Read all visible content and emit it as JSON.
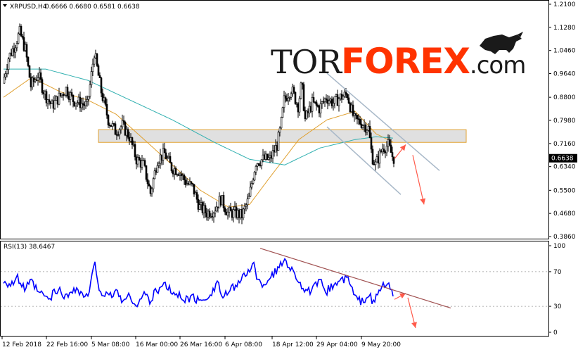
{
  "header": {
    "symbol": "XRPUSD,H4",
    "ohlc": "0.6666 0.6680 0.6581 0.6638"
  },
  "watermark": {
    "part1": "TOR",
    "part2": "FOREX",
    "part3": ".com",
    "color_dark": "#1a1a1a",
    "color_accent": "#ff3300"
  },
  "colors": {
    "bull_candle": "#000000",
    "bear_candle": "#000000",
    "ma_fast": "#e0a030",
    "ma_slow": "#30b0b0",
    "zone": "#d8d8d8",
    "zone_border": "#e0a030",
    "channel": "#a8b8c8",
    "arrow": "#ff5a4a",
    "rsi_line": "#0000ff",
    "rsi_trend": "#a05050"
  },
  "chart_data": [
    {
      "type": "candlestick",
      "title": "XRPUSD,H4",
      "ylim": [
        0.386,
        1.21
      ],
      "y_ticks": [
        "1.2100",
        "1.1280",
        "1.0460",
        "0.9640",
        "0.8800",
        "0.7980",
        "0.7160",
        "0.6340",
        "0.5500",
        "0.4680",
        "0.3860"
      ],
      "last_price": "0.6638",
      "x_ticks": [
        "12 Feb 2018",
        "22 Feb 16:00",
        "5 Mar 08:00",
        "16 Mar 00:00",
        "26 Mar 16:00",
        "6 Apr 08:00",
        "18 Apr 12:00",
        "29 Apr 04:00",
        "9 May 20:00"
      ],
      "keypoints": [
        [
          0,
          0.93
        ],
        [
          8,
          1.02
        ],
        [
          16,
          1.06
        ],
        [
          24,
          1.11
        ],
        [
          32,
          1.05
        ],
        [
          40,
          0.92
        ],
        [
          50,
          0.96
        ],
        [
          60,
          0.89
        ],
        [
          70,
          0.85
        ],
        [
          80,
          0.88
        ],
        [
          90,
          0.91
        ],
        [
          100,
          0.87
        ],
        [
          110,
          0.86
        ],
        [
          120,
          0.85
        ],
        [
          125,
          0.94
        ],
        [
          130,
          1.04
        ],
        [
          140,
          0.9
        ],
        [
          150,
          0.8
        ],
        [
          160,
          0.76
        ],
        [
          170,
          0.78
        ],
        [
          180,
          0.74
        ],
        [
          190,
          0.66
        ],
        [
          200,
          0.64
        ],
        [
          210,
          0.54
        ],
        [
          220,
          0.66
        ],
        [
          230,
          0.68
        ],
        [
          240,
          0.63
        ],
        [
          250,
          0.62
        ],
        [
          260,
          0.58
        ],
        [
          270,
          0.56
        ],
        [
          280,
          0.49
        ],
        [
          290,
          0.47
        ],
        [
          300,
          0.48
        ],
        [
          310,
          0.52
        ],
        [
          320,
          0.47
        ],
        [
          330,
          0.47
        ],
        [
          340,
          0.46
        ],
        [
          350,
          0.52
        ],
        [
          355,
          0.59
        ],
        [
          360,
          0.65
        ],
        [
          370,
          0.66
        ],
        [
          380,
          0.66
        ],
        [
          390,
          0.71
        ],
        [
          395,
          0.77
        ],
        [
          400,
          0.87
        ],
        [
          410,
          0.91
        ],
        [
          420,
          0.85
        ],
        [
          425,
          0.93
        ],
        [
          430,
          0.8
        ],
        [
          440,
          0.86
        ],
        [
          450,
          0.84
        ],
        [
          460,
          0.88
        ],
        [
          470,
          0.86
        ],
        [
          480,
          0.88
        ],
        [
          490,
          0.89
        ],
        [
          495,
          0.84
        ],
        [
          500,
          0.8
        ],
        [
          510,
          0.79
        ],
        [
          520,
          0.77
        ],
        [
          525,
          0.67
        ],
        [
          530,
          0.64
        ],
        [
          540,
          0.7
        ],
        [
          548,
          0.71
        ],
        [
          555,
          0.664
        ]
      ],
      "ma_fast_keypoints": [
        [
          0,
          0.88
        ],
        [
          40,
          0.95
        ],
        [
          80,
          0.9
        ],
        [
          120,
          0.87
        ],
        [
          160,
          0.82
        ],
        [
          200,
          0.73
        ],
        [
          240,
          0.64
        ],
        [
          280,
          0.55
        ],
        [
          320,
          0.49
        ],
        [
          350,
          0.5
        ],
        [
          380,
          0.6
        ],
        [
          420,
          0.73
        ],
        [
          460,
          0.8
        ],
        [
          500,
          0.83
        ],
        [
          530,
          0.75
        ],
        [
          555,
          0.72
        ]
      ],
      "ma_slow_keypoints": [
        [
          0,
          0.98
        ],
        [
          60,
          0.98
        ],
        [
          120,
          0.94
        ],
        [
          180,
          0.87
        ],
        [
          240,
          0.8
        ],
        [
          300,
          0.72
        ],
        [
          350,
          0.66
        ],
        [
          400,
          0.64
        ],
        [
          450,
          0.7
        ],
        [
          500,
          0.73
        ],
        [
          530,
          0.74
        ],
        [
          555,
          0.735
        ]
      ],
      "zone": {
        "x_from": 135,
        "x_to": 658,
        "y_high": 0.765,
        "y_low": 0.72
      },
      "channel_upper": [
        [
          460,
          0.965
        ],
        [
          620,
          0.62
        ]
      ],
      "channel_lower": [
        [
          460,
          0.775
        ],
        [
          565,
          0.535
        ]
      ],
      "arrows": [
        {
          "from": [
            556,
            0.662
          ],
          "to": [
            572,
            0.712
          ]
        },
        {
          "from": [
            582,
            0.675
          ],
          "to": [
            598,
            0.5
          ]
        }
      ]
    },
    {
      "type": "line",
      "title": "RSI(13) 38.6467",
      "ylim": [
        0,
        100
      ],
      "y_ticks": [
        "100",
        "70",
        "30",
        "0"
      ],
      "levels": [
        70,
        30
      ],
      "keypoints": [
        [
          0,
          60
        ],
        [
          10,
          55
        ],
        [
          20,
          62
        ],
        [
          30,
          50
        ],
        [
          40,
          58
        ],
        [
          50,
          45
        ],
        [
          60,
          42
        ],
        [
          65,
          35
        ],
        [
          70,
          45
        ],
        [
          80,
          48
        ],
        [
          90,
          40
        ],
        [
          100,
          52
        ],
        [
          110,
          45
        ],
        [
          120,
          40
        ],
        [
          125,
          60
        ],
        [
          130,
          80
        ],
        [
          135,
          55
        ],
        [
          140,
          45
        ],
        [
          150,
          40
        ],
        [
          160,
          48
        ],
        [
          170,
          36
        ],
        [
          180,
          42
        ],
        [
          190,
          30
        ],
        [
          200,
          45
        ],
        [
          210,
          35
        ],
        [
          215,
          52
        ],
        [
          220,
          48
        ],
        [
          230,
          55
        ],
        [
          240,
          45
        ],
        [
          250,
          42
        ],
        [
          260,
          38
        ],
        [
          270,
          40
        ],
        [
          280,
          35
        ],
        [
          290,
          42
        ],
        [
          300,
          50
        ],
        [
          305,
          62
        ],
        [
          310,
          40
        ],
        [
          320,
          45
        ],
        [
          330,
          55
        ],
        [
          340,
          62
        ],
        [
          350,
          72
        ],
        [
          355,
          85
        ],
        [
          360,
          60
        ],
        [
          370,
          55
        ],
        [
          380,
          65
        ],
        [
          390,
          72
        ],
        [
          400,
          85
        ],
        [
          410,
          72
        ],
        [
          420,
          60
        ],
        [
          430,
          45
        ],
        [
          440,
          50
        ],
        [
          450,
          58
        ],
        [
          460,
          48
        ],
        [
          470,
          55
        ],
        [
          480,
          60
        ],
        [
          490,
          62
        ],
        [
          500,
          40
        ],
        [
          510,
          35
        ],
        [
          520,
          45
        ],
        [
          525,
          32
        ],
        [
          530,
          40
        ],
        [
          540,
          55
        ],
        [
          548,
          54
        ],
        [
          555,
          39
        ]
      ],
      "trendline": [
        [
          365,
          97
        ],
        [
          636,
          28
        ]
      ],
      "arrows": [
        {
          "from": [
            556,
            38
          ],
          "to": [
            572,
            45
          ]
        },
        {
          "from": [
            575,
            40
          ],
          "to": [
            586,
            5
          ]
        }
      ]
    }
  ]
}
